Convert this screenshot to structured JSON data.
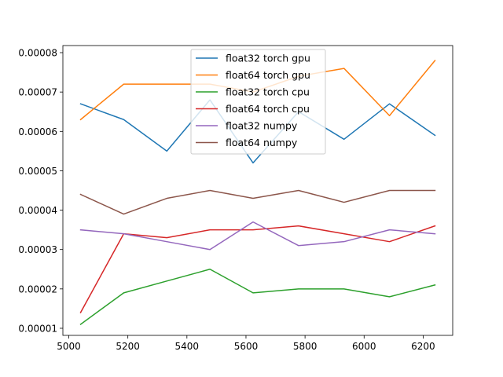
{
  "chart_data": {
    "type": "line",
    "x": [
      5040,
      5186,
      5332,
      5478,
      5624,
      5778,
      5932,
      6086,
      6240
    ],
    "xlim": [
      4980,
      6300
    ],
    "ylim": [
      8.2e-06,
      8.18e-05
    ],
    "xticks": [
      5000,
      5200,
      5400,
      5600,
      5800,
      6000,
      6200
    ],
    "xtick_labels": [
      "5000",
      "5200",
      "5400",
      "5600",
      "5800",
      "6000",
      "6200"
    ],
    "yticks": [
      1e-05,
      2e-05,
      3e-05,
      4e-05,
      5e-05,
      6e-05,
      7e-05,
      8e-05
    ],
    "ytick_labels": [
      "0.00001",
      "0.00002",
      "0.00003",
      "0.00004",
      "0.00005",
      "0.00006",
      "0.00007",
      "0.00008"
    ],
    "grid": false,
    "legend_position": "top-center",
    "series": [
      {
        "name": "float32 torch gpu",
        "color": "#1f77b4",
        "values": [
          6.7e-05,
          6.3e-05,
          5.5e-05,
          6.8e-05,
          5.2e-05,
          6.5e-05,
          5.8e-05,
          6.7e-05,
          5.9e-05
        ]
      },
      {
        "name": "float64 torch gpu",
        "color": "#ff7f0e",
        "values": [
          6.3e-05,
          7.2e-05,
          7.2e-05,
          7.2e-05,
          7e-05,
          7.4e-05,
          7.6e-05,
          6.4e-05,
          7.8e-05
        ]
      },
      {
        "name": "float32 torch cpu",
        "color": "#2ca02c",
        "values": [
          1.1e-05,
          1.9e-05,
          2.2e-05,
          2.5e-05,
          1.9e-05,
          2e-05,
          2e-05,
          1.8e-05,
          2.1e-05
        ]
      },
      {
        "name": "float64 torch cpu",
        "color": "#d62728",
        "values": [
          1.4e-05,
          3.4e-05,
          3.3e-05,
          3.5e-05,
          3.5e-05,
          3.6e-05,
          3.4e-05,
          3.2e-05,
          3.6e-05
        ]
      },
      {
        "name": "float32 numpy",
        "color": "#9467bd",
        "values": [
          3.5e-05,
          3.4e-05,
          3.2e-05,
          3e-05,
          3.7e-05,
          3.1e-05,
          3.2e-05,
          3.5e-05,
          3.4e-05
        ]
      },
      {
        "name": "float64 numpy",
        "color": "#8c564b",
        "values": [
          4.4e-05,
          3.9e-05,
          4.3e-05,
          4.5e-05,
          4.3e-05,
          4.5e-05,
          4.2e-05,
          4.5e-05,
          4.5e-05
        ]
      }
    ]
  }
}
